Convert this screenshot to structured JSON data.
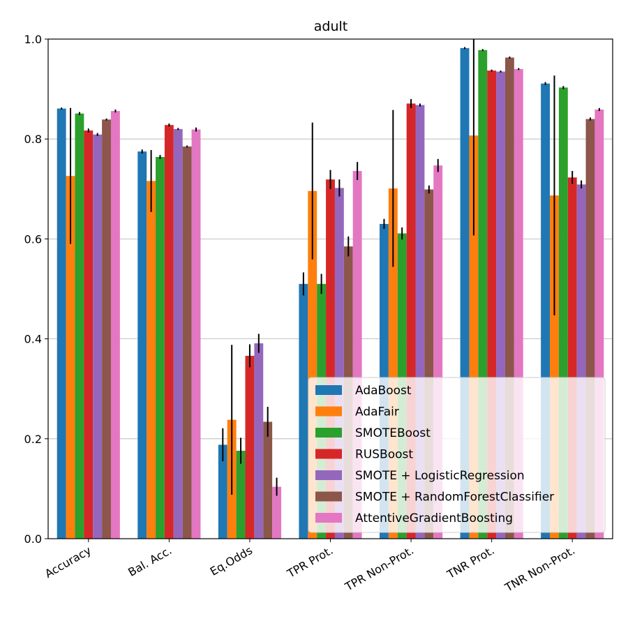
{
  "chart_data": {
    "type": "bar",
    "title": "adult",
    "xlabel": "",
    "ylabel": "",
    "ylim": [
      0,
      1.0
    ],
    "yticks": [
      "0.0",
      "0.2",
      "0.4",
      "0.6",
      "0.8",
      "1.0"
    ],
    "grid": "horizontal",
    "legend_position": "lower-right",
    "categories": [
      "Accuracy",
      "Bal. Acc.",
      "Eq.Odds",
      "TPR Prot.",
      "TPR Non-Prot.",
      "TNR Prot.",
      "TNR Non-Prot."
    ],
    "series": [
      {
        "name": "AdaBoost",
        "color": "#1f77b4",
        "values": [
          0.861,
          0.775,
          0.188,
          0.51,
          0.63,
          0.982,
          0.911
        ],
        "errors": [
          0.002,
          0.004,
          0.033,
          0.023,
          0.01,
          0.002,
          0.003
        ]
      },
      {
        "name": "AdaFair",
        "color": "#ff7f0e",
        "values": [
          0.726,
          0.716,
          0.238,
          0.696,
          0.701,
          0.807,
          0.687
        ],
        "errors": [
          0.136,
          0.062,
          0.15,
          0.137,
          0.157,
          0.2,
          0.24
        ]
      },
      {
        "name": "SMOTEBoost",
        "color": "#2ca02c",
        "values": [
          0.851,
          0.764,
          0.176,
          0.51,
          0.611,
          0.978,
          0.903
        ],
        "errors": [
          0.003,
          0.004,
          0.026,
          0.02,
          0.012,
          0.002,
          0.003
        ]
      },
      {
        "name": "RUSBoost",
        "color": "#d62728",
        "values": [
          0.817,
          0.828,
          0.366,
          0.719,
          0.871,
          0.937,
          0.723
        ],
        "errors": [
          0.004,
          0.003,
          0.023,
          0.019,
          0.009,
          0.002,
          0.013
        ]
      },
      {
        "name": "SMOTE + LogisticRegression",
        "color": "#9467bd",
        "values": [
          0.809,
          0.82,
          0.391,
          0.702,
          0.868,
          0.935,
          0.709
        ],
        "errors": [
          0.003,
          0.002,
          0.019,
          0.017,
          0.003,
          0.002,
          0.008
        ]
      },
      {
        "name": "SMOTE + RandomForestClassifier",
        "color": "#8c564b",
        "values": [
          0.839,
          0.785,
          0.234,
          0.585,
          0.699,
          0.963,
          0.84
        ],
        "errors": [
          0.002,
          0.002,
          0.03,
          0.02,
          0.008,
          0.002,
          0.003
        ]
      },
      {
        "name": "AttentiveGradientBoosting",
        "color": "#e377c2",
        "values": [
          0.856,
          0.819,
          0.104,
          0.736,
          0.747,
          0.94,
          0.859
        ],
        "errors": [
          0.003,
          0.004,
          0.018,
          0.018,
          0.013,
          0.002,
          0.003
        ]
      }
    ]
  }
}
